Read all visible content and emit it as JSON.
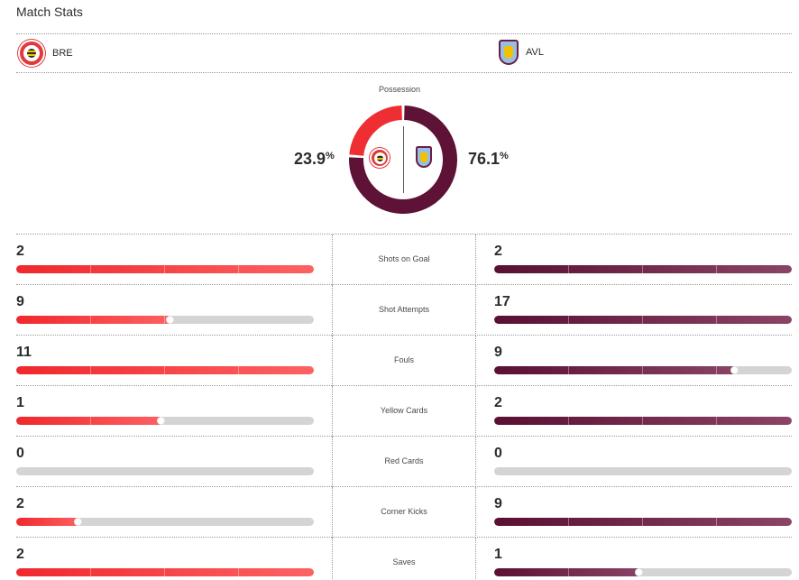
{
  "page": {
    "title": "Match Stats"
  },
  "teams": {
    "home": {
      "abbr": "BRE",
      "logo_icon": "brentford-crest-icon",
      "color": "#e03a3e"
    },
    "away": {
      "abbr": "AVL",
      "logo_icon": "aston-villa-crest-icon",
      "color": "#670e36"
    }
  },
  "possession": {
    "label": "Possession",
    "home": {
      "value": "23.9",
      "fraction": 0.239
    },
    "away": {
      "value": "76.1",
      "fraction": 0.761
    },
    "unit": "%"
  },
  "stats": [
    {
      "name": "Shots on Goal",
      "home": "2",
      "away": "2",
      "home_fill": 1.0,
      "away_fill": 1.0
    },
    {
      "name": "Shot Attempts",
      "home": "9",
      "away": "17",
      "home_fill": 0.53,
      "away_fill": 1.0
    },
    {
      "name": "Fouls",
      "home": "11",
      "away": "9",
      "home_fill": 1.0,
      "away_fill": 0.82
    },
    {
      "name": "Yellow Cards",
      "home": "1",
      "away": "2",
      "home_fill": 0.5,
      "away_fill": 1.0
    },
    {
      "name": "Red Cards",
      "home": "0",
      "away": "0",
      "home_fill": 0,
      "away_fill": 0
    },
    {
      "name": "Corner Kicks",
      "home": "2",
      "away": "9",
      "home_fill": 0.22,
      "away_fill": 1.0
    },
    {
      "name": "Saves",
      "home": "2",
      "away": "1",
      "home_fill": 1.0,
      "away_fill": 0.5
    }
  ],
  "colors": {
    "home_bar": "#f0282d",
    "away_bar": "#5a0f33",
    "track": "#d4d4d4",
    "donut_home": "#ee2e32",
    "donut_away": "#5e1236"
  }
}
